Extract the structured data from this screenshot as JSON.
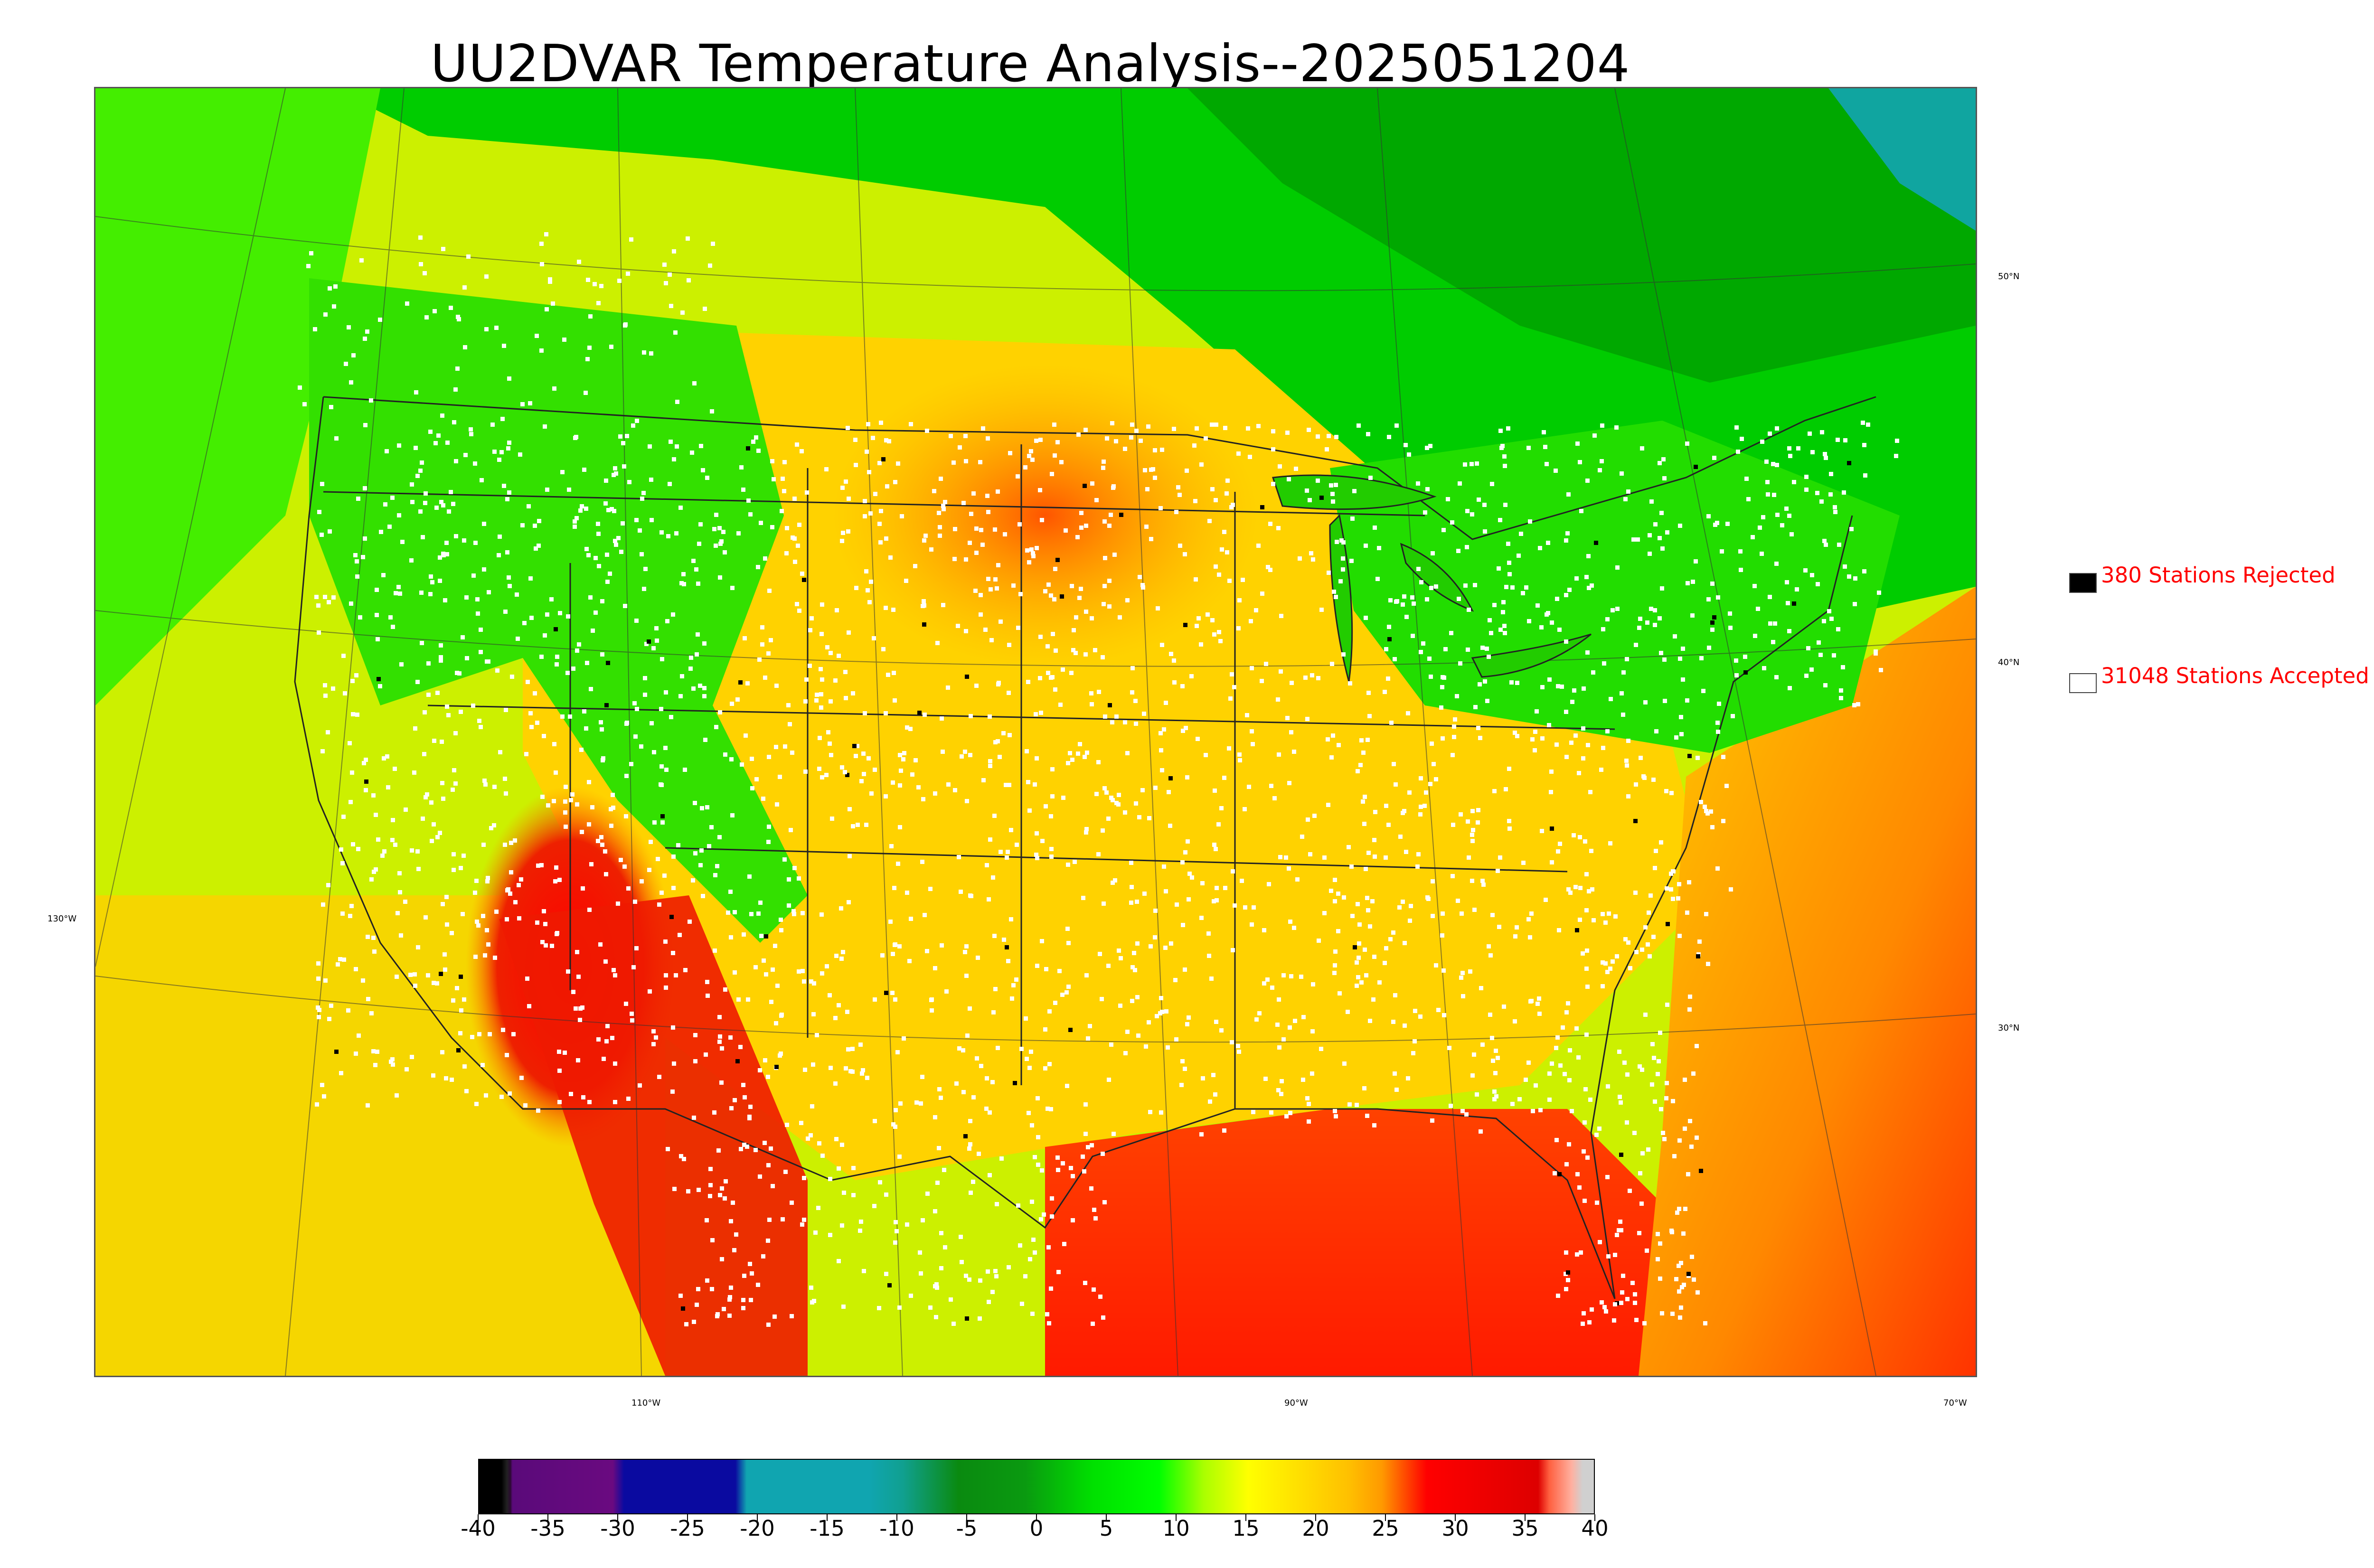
{
  "title": "UU2DVAR Temperature Analysis--2025051204",
  "legend": {
    "rejected": {
      "label": "380 Stations Rejected",
      "swatch_color": "#000000"
    },
    "accepted": {
      "label": "31048 Stations Accepted",
      "swatch_color": "#ffffff"
    },
    "text_color": "#ff0000"
  },
  "graticule": {
    "lat_labels": [
      "50°N",
      "40°N",
      "30°N"
    ],
    "lon_labels": [
      "130°W",
      "110°W",
      "90°W",
      "70°W"
    ]
  },
  "colorbar": {
    "ticks": [
      "-40",
      "-35",
      "-30",
      "-25",
      "-20",
      "-15",
      "-10",
      "-5",
      "0",
      "5",
      "10",
      "15",
      "20",
      "25",
      "30",
      "35",
      "40"
    ],
    "range": [
      -40,
      40
    ],
    "colors": [
      "#000000",
      "#6a0a80",
      "#0a0aa0",
      "#10a5b0",
      "#0a8a10",
      "#00ff00",
      "#ffff00",
      "#ffa500",
      "#ff0000",
      "#d0d0d0"
    ]
  }
}
